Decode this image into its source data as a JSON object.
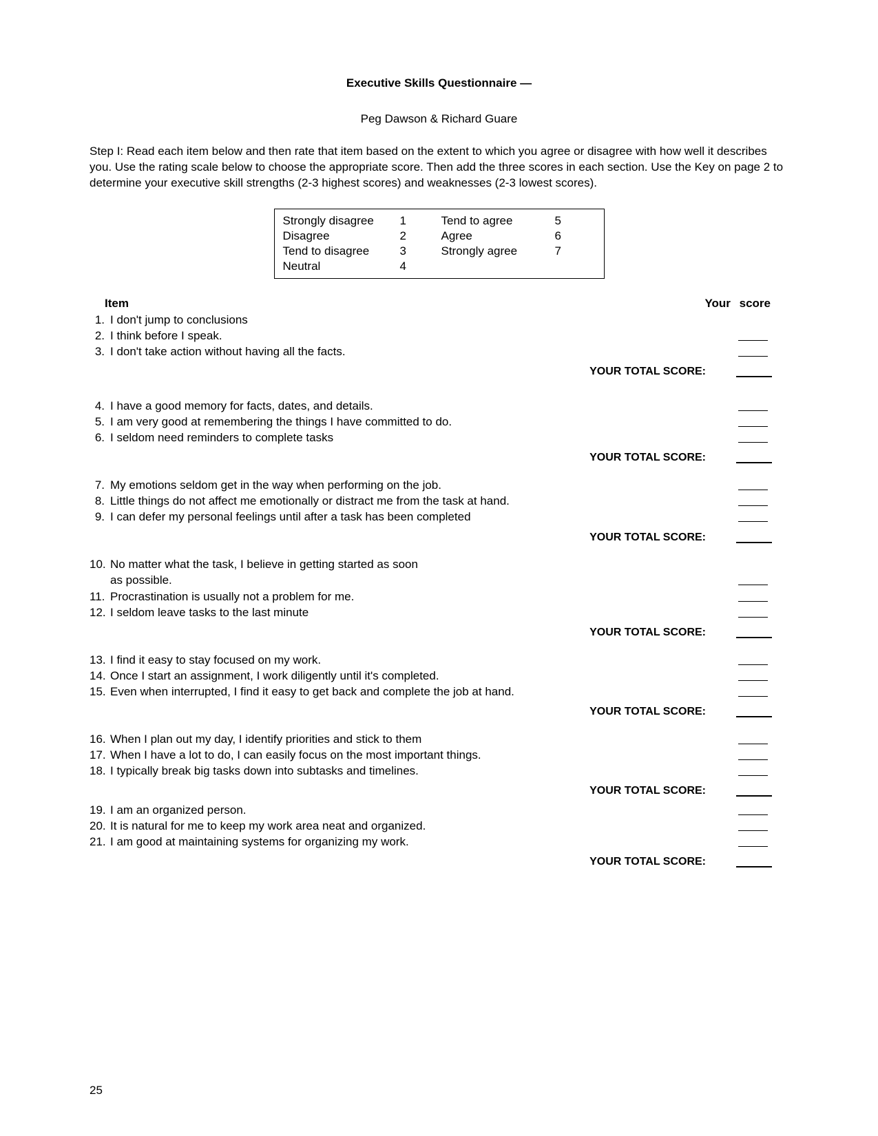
{
  "title": "Executive Skills Questionnaire —",
  "authors": "Peg Dawson & Richard Guare",
  "instructions": "Step I:  Read each item below and then rate that item based on the extent to which you agree or disagree with how well it describes you. Use the rating scale below to choose the appropriate score. Then add the three scores in each section. Use the Key on page 2 to determine your executive skill strengths (2-3 highest scores) and weaknesses (2-3 lowest scores).",
  "rating_scale": {
    "left": [
      {
        "label": "Strongly disagree",
        "value": "1"
      },
      {
        "label": "Disagree",
        "value": "2"
      },
      {
        "label": "Tend to disagree",
        "value": "3"
      },
      {
        "label": "Neutral",
        "value": "4"
      }
    ],
    "right": [
      {
        "label": "Tend to agree",
        "value": "5"
      },
      {
        "label": "Agree",
        "value": "6"
      },
      {
        "label": "Strongly agree",
        "value": "7"
      }
    ]
  },
  "headers": {
    "item": "Item",
    "score": "Your score"
  },
  "total_label": "YOUR TOTAL SCORE:",
  "sections": [
    {
      "items": [
        {
          "num": "1.",
          "text": "I don't jump to conclusions"
        },
        {
          "num": "2.",
          "text": "I think before I speak."
        },
        {
          "num": "3.",
          "text": "I don't take action without having all the facts."
        }
      ]
    },
    {
      "items": [
        {
          "num": "4.",
          "text": "I have a good memory for facts, dates, and details."
        },
        {
          "num": "5.",
          "text": "I am very good at remembering the things I have committed to do."
        },
        {
          "num": "6.",
          "text": "I seldom need reminders to complete tasks"
        }
      ]
    },
    {
      "items": [
        {
          "num": "7.",
          "text": "My emotions seldom get in the way when performing on the job."
        },
        {
          "num": "8.",
          "text": "Little things do not affect me emotionally or distract me from the task at hand."
        },
        {
          "num": "9.",
          "text": "I can defer my personal feelings until after a task has been completed"
        }
      ]
    },
    {
      "items": [
        {
          "num": "10.",
          "text": "No matter what the task, I believe in getting started as soon",
          "text2": "as possible."
        },
        {
          "num": "11.",
          "text": "Procrastination is usually not a problem for me."
        },
        {
          "num": "12.",
          "text": "I seldom leave tasks to the last minute"
        }
      ]
    },
    {
      "items": [
        {
          "num": "13.",
          "text": "I find it easy to stay focused on my work."
        },
        {
          "num": "14.",
          "text": "Once I start an assignment, I work diligently until it's completed."
        },
        {
          "num": "15.",
          "text": "Even when interrupted, I find it easy to get back and complete the job at hand."
        }
      ]
    },
    {
      "items": [
        {
          "num": "16.",
          "text": "When I plan out my day, I identify priorities and stick to them"
        },
        {
          "num": "17.",
          "text": "When I have a lot to do, I can easily focus on the most important things."
        },
        {
          "num": "18.",
          "text": "I typically break big tasks down into subtasks and timelines."
        }
      ]
    },
    {
      "items": [
        {
          "num": "19.",
          "text": "I am an organized person."
        },
        {
          "num": "20.",
          "text": "It is natural for me to keep my work area neat and organized."
        },
        {
          "num": "21.",
          "text": "I am good at maintaining systems for organizing my work."
        }
      ]
    }
  ],
  "page_number": "25",
  "colors": {
    "text": "#000000",
    "background": "#ffffff",
    "border": "#000000"
  }
}
